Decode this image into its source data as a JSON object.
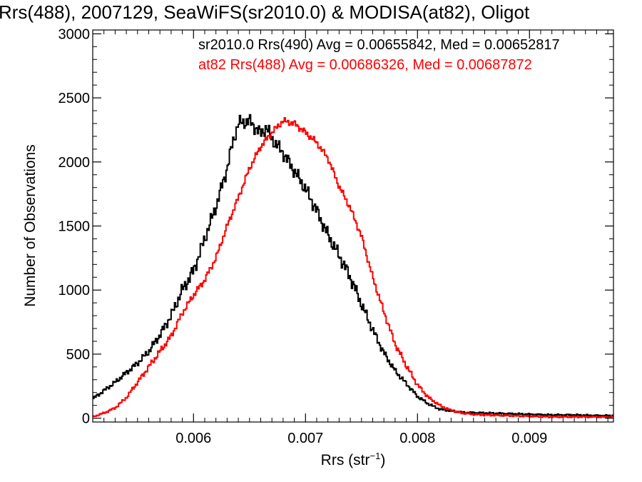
{
  "chart_data": {
    "type": "line",
    "title": "Rrs(488), 2007129, SeaWiFS(sr2010.0) & MODISA(at82), Oligot",
    "xlabel": "Rrs (str",
    "xlabel_sup": "−1",
    "xlabel_close": ")",
    "ylabel": "Number of Observations",
    "xlim": [
      0.0051,
      0.00975
    ],
    "ylim": [
      -30,
      3030
    ],
    "xticks": [
      0.006,
      0.007,
      0.008,
      0.009
    ],
    "xtick_labels": [
      "0.006",
      "0.007",
      "0.008",
      "0.009"
    ],
    "yticks": [
      0,
      500,
      1000,
      1500,
      2000,
      2500,
      3000
    ],
    "ytick_labels": [
      "0",
      "500",
      "1000",
      "1500",
      "2000",
      "2500",
      "3000"
    ],
    "grid": false,
    "legend_position": "top-right",
    "series": [
      {
        "name": "sr2010.0 Rrs(490) Avg = 0.00655842, Med = 0.00652817",
        "color": "#000000",
        "x": [
          0.0051,
          0.0053,
          0.0055,
          0.0056,
          0.0057,
          0.0058,
          0.0059,
          0.006,
          0.0061,
          0.0062,
          0.0063,
          0.00635,
          0.0064,
          0.0065,
          0.0066,
          0.00665,
          0.0067,
          0.0068,
          0.0069,
          0.007,
          0.0071,
          0.0072,
          0.0073,
          0.0074,
          0.0075,
          0.0076,
          0.0077,
          0.0078,
          0.0079,
          0.008,
          0.0081,
          0.0082,
          0.0084,
          0.0086,
          0.0088,
          0.009,
          0.0092,
          0.0094,
          0.0096,
          0.00975
        ],
        "y": [
          150,
          280,
          430,
          520,
          650,
          800,
          1000,
          1150,
          1400,
          1650,
          1950,
          2150,
          2300,
          2320,
          2220,
          2270,
          2180,
          2070,
          1930,
          1790,
          1620,
          1430,
          1270,
          1100,
          890,
          690,
          510,
          370,
          270,
          170,
          110,
          70,
          45,
          40,
          35,
          30,
          25,
          25,
          20,
          20
        ]
      },
      {
        "name": "at82 Rrs(488) Avg = 0.00686326, Med = 0.00687872",
        "color": "#ff0000",
        "x": [
          0.0051,
          0.0052,
          0.0053,
          0.0054,
          0.0055,
          0.0056,
          0.0057,
          0.0058,
          0.0059,
          0.006,
          0.0061,
          0.0062,
          0.0063,
          0.0064,
          0.0065,
          0.0066,
          0.0067,
          0.0068,
          0.0069,
          0.007,
          0.0071,
          0.0072,
          0.0073,
          0.0074,
          0.0075,
          0.0076,
          0.0077,
          0.0078,
          0.0079,
          0.008,
          0.0081,
          0.0082,
          0.0083,
          0.0084,
          0.0085,
          0.0086,
          0.0088,
          0.009,
          0.0092,
          0.0095,
          0.00975
        ],
        "y": [
          10,
          40,
          80,
          160,
          280,
          400,
          520,
          640,
          820,
          960,
          1080,
          1250,
          1500,
          1720,
          1950,
          2120,
          2230,
          2320,
          2300,
          2230,
          2150,
          2030,
          1810,
          1640,
          1420,
          1100,
          830,
          580,
          410,
          260,
          160,
          100,
          60,
          40,
          30,
          25,
          20,
          15,
          10,
          10,
          8
        ]
      }
    ]
  }
}
